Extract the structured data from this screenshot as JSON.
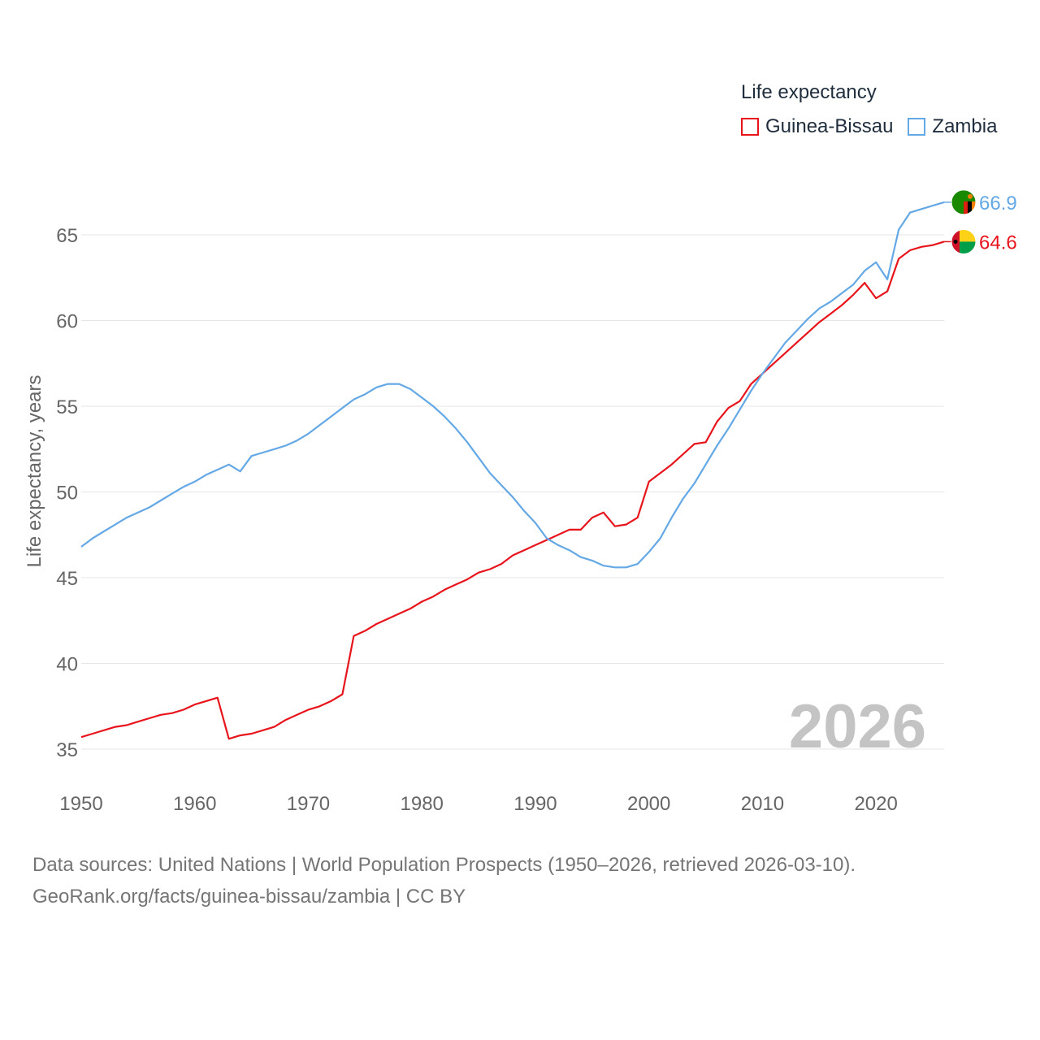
{
  "legend": {
    "title": "Life expectancy",
    "items": [
      {
        "name": "Guinea-Bissau",
        "color": "#e8141c"
      },
      {
        "name": "Zambia",
        "color": "#64a8e6"
      }
    ]
  },
  "footer": {
    "line1": "Data sources: United Nations | World Population Prospects (1950–2026, retrieved 2026-03-10).",
    "line2": "GeoRank.org/facts/guinea-bissau/zambia | CC BY"
  },
  "chart_data": {
    "type": "line",
    "title": "Life expectancy",
    "xlabel": "",
    "ylabel": "Life expectancy, years",
    "xlim": [
      1950,
      2026
    ],
    "ylim": [
      33,
      68
    ],
    "yticks": [
      35,
      40,
      45,
      50,
      55,
      60,
      65
    ],
    "xticks": [
      1950,
      1960,
      1970,
      1980,
      1990,
      2000,
      2010,
      2020
    ],
    "grid": true,
    "legend": "top-right",
    "year_label": "2026",
    "series": [
      {
        "name": "Guinea-Bissau",
        "color": "#e8141c",
        "end_label": "64.6",
        "x": [
          1950,
          1951,
          1952,
          1953,
          1954,
          1955,
          1956,
          1957,
          1958,
          1959,
          1960,
          1961,
          1962,
          1963,
          1964,
          1965,
          1966,
          1967,
          1968,
          1969,
          1970,
          1971,
          1972,
          1973,
          1974,
          1975,
          1976,
          1977,
          1978,
          1979,
          1980,
          1981,
          1982,
          1983,
          1984,
          1985,
          1986,
          1987,
          1988,
          1989,
          1990,
          1991,
          1992,
          1993,
          1994,
          1995,
          1996,
          1997,
          1998,
          1999,
          2000,
          2001,
          2002,
          2003,
          2004,
          2005,
          2006,
          2007,
          2008,
          2009,
          2010,
          2011,
          2012,
          2013,
          2014,
          2015,
          2016,
          2017,
          2018,
          2019,
          2020,
          2021,
          2022,
          2023,
          2024,
          2025,
          2026
        ],
        "values": [
          35.7,
          35.9,
          36.1,
          36.3,
          36.4,
          36.6,
          36.8,
          37.0,
          37.1,
          37.3,
          37.6,
          37.8,
          38.0,
          35.6,
          35.8,
          35.9,
          36.1,
          36.3,
          36.7,
          37.0,
          37.3,
          37.5,
          37.8,
          38.2,
          41.6,
          41.9,
          42.3,
          42.6,
          42.9,
          43.2,
          43.6,
          43.9,
          44.3,
          44.6,
          44.9,
          45.3,
          45.5,
          45.8,
          46.3,
          46.6,
          46.9,
          47.2,
          47.5,
          47.8,
          47.8,
          48.5,
          48.8,
          48.0,
          48.1,
          48.5,
          50.6,
          51.1,
          51.6,
          52.2,
          52.8,
          52.9,
          54.1,
          54.9,
          55.3,
          56.3,
          56.9,
          57.5,
          58.1,
          58.7,
          59.3,
          59.9,
          60.4,
          60.9,
          61.5,
          62.2,
          61.3,
          61.7,
          63.6,
          64.1,
          64.3,
          64.4,
          64.6
        ]
      },
      {
        "name": "Zambia",
        "color": "#64a8e6",
        "end_label": "66.9",
        "x": [
          1950,
          1951,
          1952,
          1953,
          1954,
          1955,
          1956,
          1957,
          1958,
          1959,
          1960,
          1961,
          1962,
          1963,
          1964,
          1965,
          1966,
          1967,
          1968,
          1969,
          1970,
          1971,
          1972,
          1973,
          1974,
          1975,
          1976,
          1977,
          1978,
          1979,
          1980,
          1981,
          1982,
          1983,
          1984,
          1985,
          1986,
          1987,
          1988,
          1989,
          1990,
          1991,
          1992,
          1993,
          1994,
          1995,
          1996,
          1997,
          1998,
          1999,
          2000,
          2001,
          2002,
          2003,
          2004,
          2005,
          2006,
          2007,
          2008,
          2009,
          2010,
          2011,
          2012,
          2013,
          2014,
          2015,
          2016,
          2017,
          2018,
          2019,
          2020,
          2021,
          2022,
          2023,
          2024,
          2025,
          2026
        ],
        "values": [
          46.8,
          47.3,
          47.7,
          48.1,
          48.5,
          48.8,
          49.1,
          49.5,
          49.9,
          50.3,
          50.6,
          51.0,
          51.3,
          51.6,
          51.2,
          52.1,
          52.3,
          52.5,
          52.7,
          53.0,
          53.4,
          53.9,
          54.4,
          54.9,
          55.4,
          55.7,
          56.1,
          56.3,
          56.3,
          56.0,
          55.5,
          55.0,
          54.4,
          53.7,
          52.9,
          52.0,
          51.1,
          50.4,
          49.7,
          48.9,
          48.2,
          47.3,
          46.9,
          46.6,
          46.2,
          46.0,
          45.7,
          45.6,
          45.6,
          45.8,
          46.5,
          47.3,
          48.5,
          49.6,
          50.5,
          51.6,
          52.7,
          53.7,
          54.8,
          55.9,
          56.9,
          57.8,
          58.7,
          59.4,
          60.1,
          60.7,
          61.1,
          61.6,
          62.1,
          62.9,
          63.4,
          62.4,
          65.3,
          66.3,
          66.5,
          66.7,
          66.9
        ]
      }
    ]
  }
}
